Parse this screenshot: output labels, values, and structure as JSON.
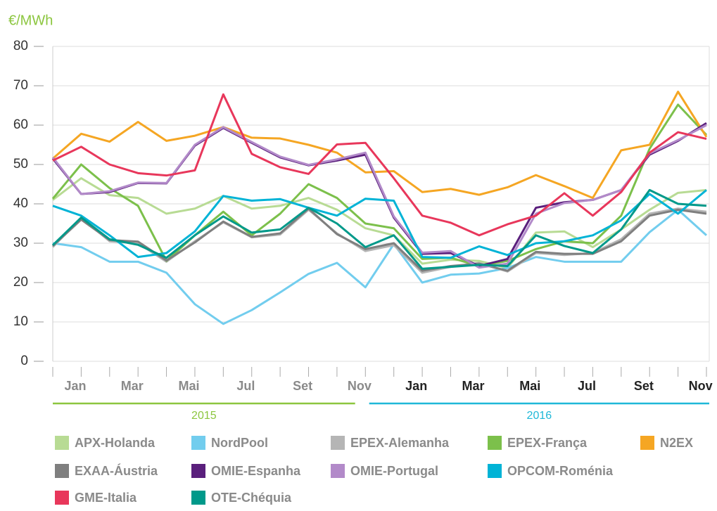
{
  "chart_data": {
    "type": "line",
    "y_label": "€/MWh",
    "categories": [
      "Jan",
      null,
      "Mar",
      null,
      "Mai",
      null,
      "Jul",
      null,
      "Set",
      null,
      "Nov",
      null,
      "Jan",
      null,
      "Mar",
      null,
      "Mai",
      null,
      "Jul",
      null,
      "Set",
      null,
      "Nov",
      null
    ],
    "groups": [
      {
        "label": "2015",
        "color": "#8cc63f"
      },
      {
        "label": "2016",
        "color": "#1fb8d8"
      }
    ],
    "ylim": [
      0,
      80
    ],
    "yticks": [
      0,
      10,
      20,
      30,
      40,
      50,
      60,
      70,
      80
    ],
    "grid": true,
    "series": [
      {
        "name": "APX-Holanda",
        "color": "#b8db94",
        "values": [
          41,
          46.5,
          42.2,
          41.5,
          37.5,
          38.8,
          42,
          38.8,
          39.5,
          41.5,
          38.5,
          33.8,
          32,
          24.8,
          25.8,
          25.5,
          23.7,
          32.7,
          33,
          29,
          33.5,
          38.5,
          42.8,
          43.5
        ]
      },
      {
        "name": "NordPool",
        "color": "#72cdee",
        "values": [
          30,
          29,
          25.3,
          25.3,
          22.5,
          14.5,
          9.5,
          13,
          17.5,
          22.2,
          25,
          18.8,
          29.8,
          20,
          22,
          22.3,
          23.7,
          26.5,
          25.3,
          25.3,
          25.3,
          32.8,
          38.5,
          32
        ]
      },
      {
        "name": "EPEX-Alemanha",
        "color": "#b5b5b5",
        "values": [
          29,
          36.5,
          30.5,
          30,
          25.3,
          30.5,
          35.3,
          31.5,
          32.2,
          38.5,
          32.5,
          28,
          29.5,
          22.5,
          24,
          25,
          22.8,
          27.5,
          27,
          27.5,
          31,
          37.5,
          38.8,
          38
        ]
      },
      {
        "name": "EPEX-França",
        "color": "#7cc04b",
        "values": [
          41.3,
          50,
          44,
          39.5,
          25.5,
          32,
          38,
          32,
          37.5,
          45,
          41.5,
          35,
          33.8,
          26,
          26.3,
          24.2,
          25.5,
          28.5,
          30.5,
          30,
          37,
          54,
          65.2,
          57.5
        ]
      },
      {
        "name": "N2EX",
        "color": "#f5a623",
        "values": [
          51.5,
          57.8,
          55.8,
          60.8,
          56,
          57.3,
          59.5,
          56.8,
          56.6,
          55,
          53,
          48,
          48.3,
          43,
          43.8,
          42.3,
          44.2,
          47.3,
          44.5,
          41.5,
          53.6,
          55,
          68.5,
          57
        ]
      },
      {
        "name": "EXAA-Áustria",
        "color": "#7f7f7f",
        "values": [
          29.3,
          36,
          30.8,
          30.4,
          25.6,
          30.2,
          35.5,
          31.6,
          32.5,
          38.8,
          32.3,
          28.5,
          30,
          23,
          24.2,
          24.8,
          23,
          27.8,
          27.3,
          27.3,
          30.5,
          37,
          38.5,
          37.5
        ]
      },
      {
        "name": "OMIE-Espanha",
        "color": "#5a1f7c",
        "values": [
          51.5,
          42.5,
          43,
          45.3,
          45.2,
          54.8,
          59.3,
          55.5,
          51.8,
          49.8,
          51,
          52.5,
          36.5,
          27.3,
          27.5,
          24.2,
          26,
          39,
          40.4,
          41,
          43.5,
          52.5,
          56,
          60.5
        ]
      },
      {
        "name": "OMIE-Portugal",
        "color": "#b28ac9",
        "values": [
          51.8,
          42.5,
          43.2,
          45.4,
          45.3,
          55,
          59.5,
          55.7,
          52,
          49.9,
          51.3,
          53,
          36.8,
          27.6,
          28,
          23.8,
          24.8,
          37.5,
          40.2,
          41,
          43.5,
          52.8,
          56.2,
          60
        ]
      },
      {
        "name": "OPCOM-Roménia",
        "color": "#00b3d6",
        "values": [
          39.5,
          37,
          32,
          26.5,
          27.5,
          33,
          42,
          40.8,
          41.2,
          39,
          37,
          41.3,
          40.8,
          26.5,
          26.3,
          29.2,
          27,
          30,
          30.5,
          32,
          35.8,
          42.5,
          37.5,
          43.5
        ]
      },
      {
        "name": "GME-Italia",
        "color": "#e8375b",
        "values": [
          51,
          54.5,
          50,
          47.8,
          47.2,
          48.5,
          67.8,
          52.7,
          49.3,
          47.6,
          55.1,
          55.5,
          46.5,
          37,
          35.2,
          32,
          34.8,
          37,
          42.7,
          37,
          43,
          53,
          58.2,
          56.5
        ]
      },
      {
        "name": "OTE-Chéquia",
        "color": "#00998a",
        "values": [
          29.5,
          36.5,
          31,
          29.6,
          26.3,
          32,
          36.8,
          32.7,
          33.5,
          39,
          35,
          29,
          32,
          23.5,
          24,
          24.5,
          24.2,
          32,
          29.3,
          27.5,
          33.5,
          43.5,
          40,
          39.5
        ]
      }
    ]
  }
}
